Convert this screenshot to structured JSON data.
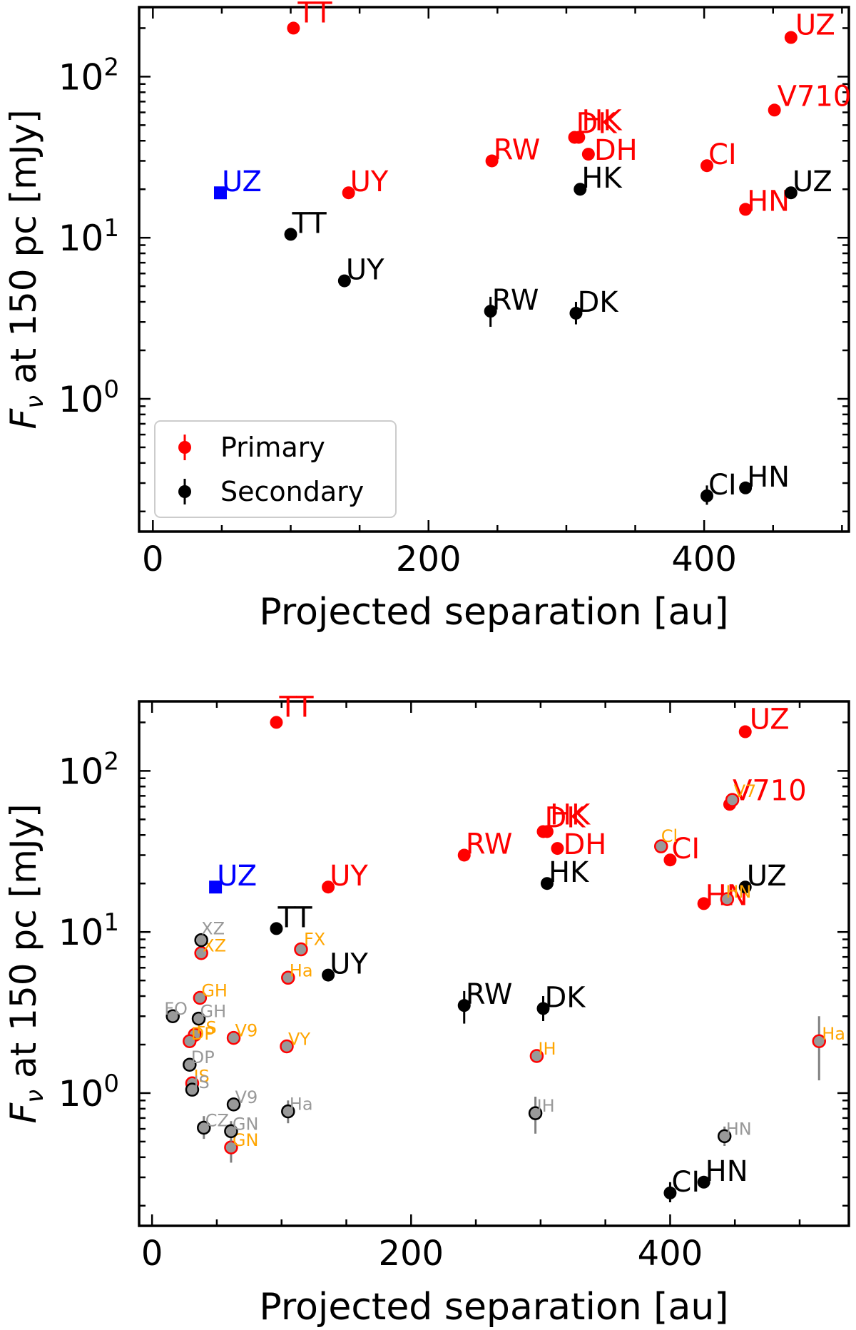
{
  "chart_data": [
    {
      "type": "scatter",
      "title": "",
      "xlabel": "Projected separation [au]",
      "ylabel_parts": [
        "F",
        "ν",
        " at 150 pc [mJy]"
      ],
      "xlim": [
        -10,
        505
      ],
      "ylim": [
        0.15,
        270
      ],
      "yscale": "log",
      "xticks": [
        0,
        200,
        400
      ],
      "yticks": [
        {
          "base": "10",
          "exp": "0",
          "value": 1
        },
        {
          "base": "10",
          "exp": "1",
          "value": 10
        },
        {
          "base": "10",
          "exp": "2",
          "value": 100
        }
      ],
      "legend": {
        "placement": "lower-left",
        "entries": [
          {
            "label": "Primary",
            "color": "#ff0000"
          },
          {
            "label": "Secondary",
            "color": "#000000"
          }
        ]
      },
      "series": [
        {
          "color": "#ff0000",
          "marker": "circle",
          "points": [
            {
              "label": "TT",
              "x": 102,
              "y": 200
            },
            {
              "label": "UZ",
              "x": 463,
              "y": 175
            },
            {
              "label": "V710",
              "x": 451,
              "y": 62
            },
            {
              "label": "DK",
              "x": 306,
              "y": 42
            },
            {
              "label": "HK",
              "x": 309,
              "y": 42
            },
            {
              "label": "DH",
              "x": 316,
              "y": 33
            },
            {
              "label": "RW",
              "x": 246,
              "y": 30
            },
            {
              "label": "CI",
              "x": 402,
              "y": 28
            },
            {
              "label": "UY",
              "x": 142,
              "y": 19
            },
            {
              "label": "HN",
              "x": 430,
              "y": 15
            }
          ]
        },
        {
          "color": "#000000",
          "marker": "circle",
          "points": [
            {
              "label": "HK",
              "x": 310,
              "y": 20
            },
            {
              "label": "UZ",
              "x": 463,
              "y": 19
            },
            {
              "label": "TT",
              "x": 100,
              "y": 10.5
            },
            {
              "label": "UY",
              "x": 139,
              "y": 5.4
            },
            {
              "label": "RW",
              "x": 245,
              "y": 3.5,
              "ylo": 2.8,
              "yhi": 4.3
            },
            {
              "label": "DK",
              "x": 307,
              "y": 3.4,
              "ylo": 2.9,
              "yhi": 4.0
            },
            {
              "label": "CI",
              "x": 402,
              "y": 0.25,
              "ylo": 0.22,
              "yhi": 0.29
            },
            {
              "label": "HN",
              "x": 430,
              "y": 0.28
            }
          ]
        },
        {
          "color": "#0000ff",
          "marker": "square",
          "points": [
            {
              "label": "UZ",
              "x": 49,
              "y": 19
            }
          ]
        }
      ]
    },
    {
      "type": "scatter",
      "title": "",
      "xlabel": "Projected separation [au]",
      "ylabel_parts": [
        "F",
        "ν",
        "  at 150 pc [mJy]"
      ],
      "xlim": [
        -10,
        538
      ],
      "ylim": [
        0.15,
        270
      ],
      "yscale": "log",
      "xticks": [
        0,
        200,
        400
      ],
      "yticks": [
        {
          "base": "10",
          "exp": "0",
          "value": 1
        },
        {
          "base": "10",
          "exp": "1",
          "value": 10
        },
        {
          "base": "10",
          "exp": "2",
          "value": 100
        }
      ],
      "series": [
        {
          "color": "#ff0000",
          "marker": "circle",
          "points": [
            {
              "label": "TT",
              "x": 96,
              "y": 200
            },
            {
              "label": "UZ",
              "x": 458,
              "y": 175
            },
            {
              "label": "V710",
              "x": 446,
              "y": 62
            },
            {
              "label": "DK",
              "x": 302,
              "y": 42
            },
            {
              "label": "HK",
              "x": 305,
              "y": 42
            },
            {
              "label": "DH",
              "x": 313,
              "y": 33
            },
            {
              "label": "RW",
              "x": 241,
              "y": 30
            },
            {
              "label": "CI",
              "x": 400,
              "y": 28
            },
            {
              "label": "UY",
              "x": 136,
              "y": 19
            },
            {
              "label": "HN",
              "x": 426,
              "y": 15
            }
          ]
        },
        {
          "color": "#000000",
          "marker": "circle",
          "points": [
            {
              "label": "HK",
              "x": 305,
              "y": 20
            },
            {
              "label": "UZ",
              "x": 458,
              "y": 19
            },
            {
              "label": "TT",
              "x": 96,
              "y": 10.5
            },
            {
              "label": "UY",
              "x": 136,
              "y": 5.4
            },
            {
              "label": "RW",
              "x": 241,
              "y": 3.5,
              "ylo": 2.7,
              "yhi": 4.3
            },
            {
              "label": "DK",
              "x": 302,
              "y": 3.35,
              "ylo": 2.8,
              "yhi": 4.0
            },
            {
              "label": "CI",
              "x": 400,
              "y": 0.24,
              "ylo": 0.21,
              "yhi": 0.28
            },
            {
              "label": "HN",
              "x": 426,
              "y": 0.28
            }
          ]
        },
        {
          "color": "#0000ff",
          "marker": "square",
          "points": [
            {
              "label": "UZ",
              "x": 49,
              "y": 19
            }
          ]
        },
        {
          "marker": "circle",
          "fill": "#999999",
          "edge": "#ff0000",
          "label_color": "#ffa500",
          "points": [
            {
              "label": "Cl",
              "x": 393,
              "y": 34
            },
            {
              "label": "V7",
              "x": 448,
              "y": 66
            },
            {
              "label": "HN",
              "x": 444,
              "y": 16
            },
            {
              "label": "XZ",
              "x": 38,
              "y": 7.4
            },
            {
              "label": "FX",
              "x": 115,
              "y": 7.8
            },
            {
              "label": "Ha",
              "x": 105,
              "y": 5.2
            },
            {
              "label": "GH",
              "x": 37,
              "y": 3.9
            },
            {
              "label": "FS",
              "x": 33,
              "y": 2.3
            },
            {
              "label": "DP",
              "x": 29,
              "y": 2.1
            },
            {
              "label": "V9",
              "x": 63,
              "y": 2.2
            },
            {
              "label": "VY",
              "x": 104,
              "y": 1.95
            },
            {
              "label": "IH",
              "x": 297,
              "y": 1.7
            },
            {
              "label": "Ha",
              "x": 515,
              "y": 2.1,
              "ylo": 1.2,
              "yhi": 3.0
            },
            {
              "label": "IS",
              "x": 31,
              "y": 1.15
            },
            {
              "label": "GN",
              "x": 61,
              "y": 0.46,
              "ylo": 0.37,
              "yhi": 0.56
            }
          ]
        },
        {
          "marker": "circle",
          "fill": "#999999",
          "edge": "#000000",
          "label_color": "#999999",
          "points": [
            {
              "label": "XZ",
              "x": 38,
              "y": 8.9
            },
            {
              "label": "FO",
              "x": 16,
              "y": 3.0
            },
            {
              "label": "GH",
              "x": 36,
              "y": 2.9
            },
            {
              "label": "DP",
              "x": 29,
              "y": 1.5
            },
            {
              "label": "IS",
              "x": 31,
              "y": 1.05
            },
            {
              "label": "V9",
              "x": 63,
              "y": 0.85
            },
            {
              "label": "Ha",
              "x": 105,
              "y": 0.77,
              "ylo": 0.65,
              "yhi": 0.9
            },
            {
              "label": "IH",
              "x": 296,
              "y": 0.75,
              "ylo": 0.56,
              "yhi": 0.95
            },
            {
              "label": "CZ",
              "x": 40,
              "y": 0.61,
              "ylo": 0.52,
              "yhi": 0.72
            },
            {
              "label": "GN",
              "x": 61,
              "y": 0.58,
              "ylo": 0.5,
              "yhi": 0.67
            },
            {
              "label": "HN",
              "x": 442,
              "y": 0.54,
              "ylo": 0.47,
              "yhi": 0.62
            }
          ]
        }
      ]
    }
  ]
}
